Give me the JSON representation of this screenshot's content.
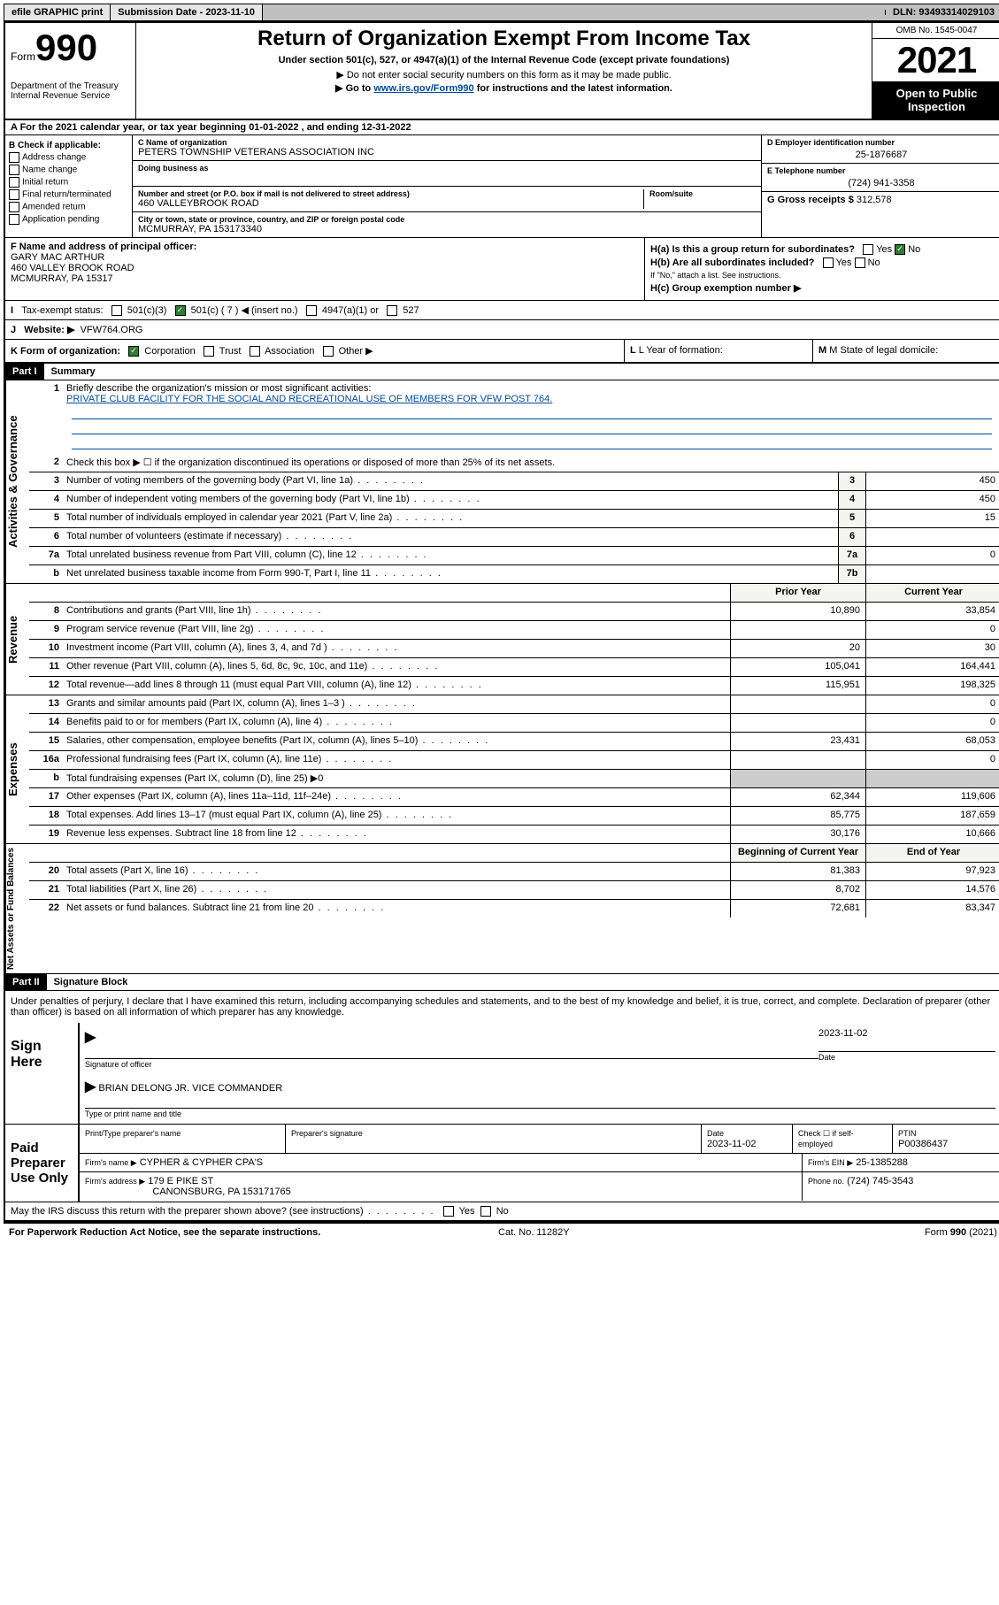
{
  "topbar": {
    "efile": "efile GRAPHIC print",
    "sub_label": "Submission Date - 2023-11-10",
    "dln": "DLN: 93493314029103"
  },
  "header": {
    "form_word": "Form",
    "form_num": "990",
    "dept": "Department of the Treasury Internal Revenue Service",
    "title": "Return of Organization Exempt From Income Tax",
    "sub1": "Under section 501(c), 527, or 4947(a)(1) of the Internal Revenue Code (except private foundations)",
    "sub2": "▶ Do not enter social security numbers on this form as it may be made public.",
    "sub3_pre": "▶ Go to ",
    "sub3_link": "www.irs.gov/Form990",
    "sub3_post": " for instructions and the latest information.",
    "omb": "OMB No. 1545-0047",
    "year": "2021",
    "open": "Open to Public Inspection"
  },
  "rowA": "A For the 2021 calendar year, or tax year beginning 01-01-2022   , and ending 12-31-2022",
  "colB": {
    "label": "B Check if applicable:",
    "opts": [
      "Address change",
      "Name change",
      "Initial return",
      "Final return/terminated",
      "Amended return",
      "Application pending"
    ]
  },
  "colC": {
    "name_lbl": "C Name of organization",
    "name": "PETERS TOWNSHIP VETERANS ASSOCIATION INC",
    "dba_lbl": "Doing business as",
    "addr_lbl": "Number and street (or P.O. box if mail is not delivered to street address)",
    "room_lbl": "Room/suite",
    "addr": "460 VALLEYBROOK ROAD",
    "city_lbl": "City or town, state or province, country, and ZIP or foreign postal code",
    "city": "MCMURRAY, PA  153173340"
  },
  "colD": {
    "ein_lbl": "D Employer identification number",
    "ein": "25-1876687",
    "tel_lbl": "E Telephone number",
    "tel": "(724) 941-3358",
    "gross_lbl": "G Gross receipts $",
    "gross": "312,578"
  },
  "rowF": {
    "lbl": "F Name and address of principal officer:",
    "name": "GARY MAC ARTHUR",
    "addr1": "460 VALLEY BROOK ROAD",
    "addr2": "MCMURRAY, PA  15317"
  },
  "rowH": {
    "a": "H(a)  Is this a group return for subordinates?",
    "b": "H(b)  Are all subordinates included?",
    "b2": "If \"No,\" attach a list. See instructions.",
    "c": "H(c)  Group exemption number ▶"
  },
  "rowI": {
    "lbl": "Tax-exempt status:",
    "o1": "501(c)(3)",
    "o2": "501(c) ( 7 ) ◀ (insert no.)",
    "o3": "4947(a)(1) or",
    "o4": "527"
  },
  "rowJ": {
    "lbl": "Website: ▶",
    "val": "VFW764.ORG"
  },
  "rowK": {
    "k": "K Form of organization:",
    "opts": [
      "Corporation",
      "Trust",
      "Association",
      "Other ▶"
    ],
    "l": "L Year of formation:",
    "m": "M State of legal domicile:"
  },
  "part1": {
    "hdr": "Part I",
    "title": "Summary"
  },
  "mission": {
    "q": "Briefly describe the organization's mission or most significant activities:",
    "text": "PRIVATE CLUB FACILITY FOR THE SOCIAL AND RECREATIONAL USE OF MEMBERS FOR VFW POST 764."
  },
  "lines_gov": [
    {
      "n": "2",
      "t": "Check this box ▶ ☐  if the organization discontinued its operations or disposed of more than 25% of its net assets."
    },
    {
      "n": "3",
      "t": "Number of voting members of the governing body (Part VI, line 1a)",
      "box": "3",
      "v": "450"
    },
    {
      "n": "4",
      "t": "Number of independent voting members of the governing body (Part VI, line 1b)",
      "box": "4",
      "v": "450"
    },
    {
      "n": "5",
      "t": "Total number of individuals employed in calendar year 2021 (Part V, line 2a)",
      "box": "5",
      "v": "15"
    },
    {
      "n": "6",
      "t": "Total number of volunteers (estimate if necessary)",
      "box": "6",
      "v": ""
    },
    {
      "n": "7a",
      "t": "Total unrelated business revenue from Part VIII, column (C), line 12",
      "box": "7a",
      "v": "0"
    },
    {
      "n": "b",
      "t": "Net unrelated business taxable income from Form 990-T, Part I, line 11",
      "box": "7b",
      "v": ""
    }
  ],
  "rev_hdr": {
    "py": "Prior Year",
    "cy": "Current Year"
  },
  "lines_rev": [
    {
      "n": "8",
      "t": "Contributions and grants (Part VIII, line 1h)",
      "py": "10,890",
      "cy": "33,854"
    },
    {
      "n": "9",
      "t": "Program service revenue (Part VIII, line 2g)",
      "py": "",
      "cy": "0"
    },
    {
      "n": "10",
      "t": "Investment income (Part VIII, column (A), lines 3, 4, and 7d )",
      "py": "20",
      "cy": "30"
    },
    {
      "n": "11",
      "t": "Other revenue (Part VIII, column (A), lines 5, 6d, 8c, 9c, 10c, and 11e)",
      "py": "105,041",
      "cy": "164,441"
    },
    {
      "n": "12",
      "t": "Total revenue—add lines 8 through 11 (must equal Part VIII, column (A), line 12)",
      "py": "115,951",
      "cy": "198,325"
    }
  ],
  "lines_exp": [
    {
      "n": "13",
      "t": "Grants and similar amounts paid (Part IX, column (A), lines 1–3 )",
      "py": "",
      "cy": "0"
    },
    {
      "n": "14",
      "t": "Benefits paid to or for members (Part IX, column (A), line 4)",
      "py": "",
      "cy": "0"
    },
    {
      "n": "15",
      "t": "Salaries, other compensation, employee benefits (Part IX, column (A), lines 5–10)",
      "py": "23,431",
      "cy": "68,053"
    },
    {
      "n": "16a",
      "t": "Professional fundraising fees (Part IX, column (A), line 11e)",
      "py": "",
      "cy": "0"
    },
    {
      "n": "b",
      "t": "Total fundraising expenses (Part IX, column (D), line 25) ▶0",
      "shade": true
    },
    {
      "n": "17",
      "t": "Other expenses (Part IX, column (A), lines 11a–11d, 11f–24e)",
      "py": "62,344",
      "cy": "119,606"
    },
    {
      "n": "18",
      "t": "Total expenses. Add lines 13–17 (must equal Part IX, column (A), line 25)",
      "py": "85,775",
      "cy": "187,659"
    },
    {
      "n": "19",
      "t": "Revenue less expenses. Subtract line 18 from line 12",
      "py": "30,176",
      "cy": "10,666"
    }
  ],
  "na_hdr": {
    "py": "Beginning of Current Year",
    "cy": "End of Year"
  },
  "lines_na": [
    {
      "n": "20",
      "t": "Total assets (Part X, line 16)",
      "py": "81,383",
      "cy": "97,923"
    },
    {
      "n": "21",
      "t": "Total liabilities (Part X, line 26)",
      "py": "8,702",
      "cy": "14,576"
    },
    {
      "n": "22",
      "t": "Net assets or fund balances. Subtract line 21 from line 20",
      "py": "72,681",
      "cy": "83,347"
    }
  ],
  "part2": {
    "hdr": "Part II",
    "title": "Signature Block"
  },
  "decl": "Under penalties of perjury, I declare that I have examined this return, including accompanying schedules and statements, and to the best of my knowledge and belief, it is true, correct, and complete. Declaration of preparer (other than officer) is based on all information of which preparer has any knowledge.",
  "sign": {
    "here": "Sign Here",
    "sig_lbl": "Signature of officer",
    "date_lbl": "Date",
    "date": "2023-11-02",
    "name": "BRIAN DELONG JR. VICE COMMANDER",
    "name_lbl": "Type or print name and title"
  },
  "paid": {
    "lbl": "Paid Preparer Use Only",
    "h1": "Print/Type preparer's name",
    "h2": "Preparer's signature",
    "h3": "Date",
    "h3v": "2023-11-02",
    "h4": "Check ☐ if self-employed",
    "h5": "PTIN",
    "h5v": "P00386437",
    "firm_lbl": "Firm's name    ▶",
    "firm": "CYPHER & CYPHER CPA'S",
    "ein_lbl": "Firm's EIN ▶",
    "ein": "25-1385288",
    "addr_lbl": "Firm's address ▶",
    "addr1": "179 E PIKE ST",
    "addr2": "CANONSBURG, PA  153171765",
    "phone_lbl": "Phone no.",
    "phone": "(724) 745-3543"
  },
  "discuss": "May the IRS discuss this return with the preparer shown above? (see instructions)",
  "footer": {
    "left": "For Paperwork Reduction Act Notice, see the separate instructions.",
    "mid": "Cat. No. 11282Y",
    "right": "Form 990 (2021)"
  }
}
